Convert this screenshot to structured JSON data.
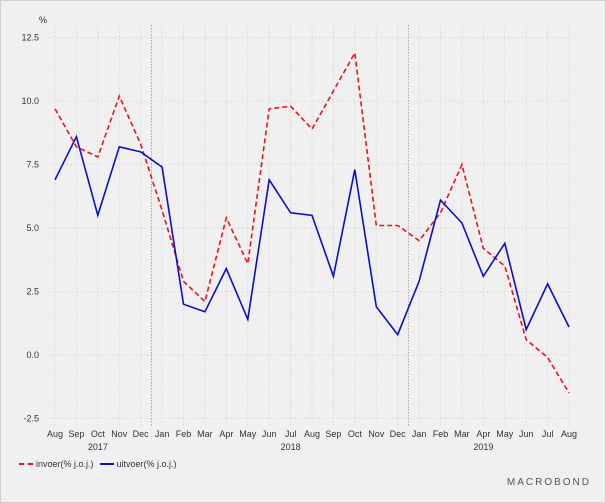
{
  "chart_data": {
    "type": "line",
    "ylabel": "%",
    "ylim": [
      -2.8,
      13.0
    ],
    "yticks": [
      "12.5",
      "10.0",
      "7.5",
      "5.0",
      "2.5",
      "0.0",
      "-2.5"
    ],
    "ytick_values": [
      12.5,
      10.0,
      7.5,
      5.0,
      2.5,
      0.0,
      -2.5
    ],
    "categories": [
      "Aug",
      "Sep",
      "Oct",
      "Nov",
      "Dec",
      "Jan",
      "Feb",
      "Mar",
      "Apr",
      "May",
      "Jun",
      "Jul",
      "Aug",
      "Sep",
      "Oct",
      "Nov",
      "Dec",
      "Jan",
      "Feb",
      "Mar",
      "Apr",
      "May",
      "Jun",
      "Jul",
      "Aug"
    ],
    "dates": [
      "2017-08",
      "2017-09",
      "2017-10",
      "2017-11",
      "2017-12",
      "2018-01",
      "2018-02",
      "2018-03",
      "2018-04",
      "2018-05",
      "2018-06",
      "2018-07",
      "2018-08",
      "2018-09",
      "2018-10",
      "2018-11",
      "2018-12",
      "2019-01",
      "2019-02",
      "2019-03",
      "2019-04",
      "2019-05",
      "2019-06",
      "2019-07",
      "2019-08"
    ],
    "years": [
      {
        "label": "2017",
        "month": "2017-10"
      },
      {
        "label": "2018",
        "month": "2018-07"
      },
      {
        "label": "2019",
        "month": "2019-04"
      }
    ],
    "year_dividers": [
      "2017-12",
      "2018-12"
    ],
    "grid": true,
    "legend_position": "bottom-left",
    "series": [
      {
        "name": "invoer(% j.o.j.)",
        "color": "#e8161d",
        "style": "dashed",
        "values": [
          9.7,
          8.2,
          7.8,
          10.2,
          8.3,
          5.7,
          2.9,
          2.1,
          5.4,
          3.6,
          9.7,
          9.8,
          8.9,
          10.4,
          11.9,
          5.1,
          5.1,
          4.5,
          5.6,
          7.5,
          4.2,
          3.5,
          0.6,
          -0.1,
          -1.5
        ]
      },
      {
        "name": "uitvoer(% j.o.j.)",
        "color": "#0b0fc2",
        "style": "solid",
        "values": [
          6.9,
          8.6,
          5.5,
          8.2,
          8.0,
          7.4,
          2.0,
          1.7,
          3.4,
          1.4,
          6.9,
          5.6,
          5.5,
          3.1,
          7.3,
          1.9,
          0.8,
          2.9,
          6.1,
          5.2,
          3.1,
          4.4,
          1.0,
          2.8,
          1.1
        ]
      }
    ]
  },
  "legend": {
    "items": [
      "invoer(% j.o.j.)",
      "uitvoer(% j.o.j.)"
    ]
  },
  "branding": {
    "logo_text": "MACROBOND"
  }
}
